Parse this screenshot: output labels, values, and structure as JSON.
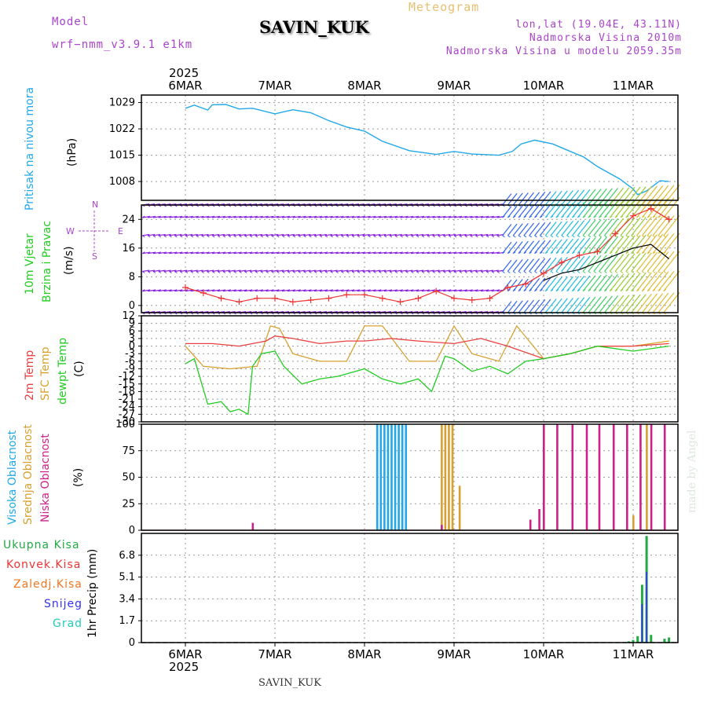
{
  "header": {
    "model_label": "Model",
    "model_name": "wrf−nmm_v3.9.1  e1km",
    "product": "Meteogram",
    "station": "SAVIN_KUK",
    "lonlat": "lon,lat (19.04E, 43.11N)",
    "altitude": "Nadmorska Visina 2010m",
    "model_altitude": "Nadmorska Visina u modelu 2059.35m"
  },
  "footer": {
    "station": "SAVIN_KUK",
    "credit": "made by Angel"
  },
  "colors": {
    "pressure": "#22a8e8",
    "wind_axis": "#00bb00",
    "temp2m": "#e84040",
    "sfc": "#d8a030",
    "dewpt": "#22cc22",
    "high_cloud": "#22a8e8",
    "mid_cloud": "#d8a030",
    "low_cloud": "#cc2288",
    "total_precip": "#22aa44",
    "conv_precip": "#ee3333",
    "frz_precip": "#ee7722",
    "snow": "#3333ee",
    "hail": "#22ccbb",
    "compass": "#aa44cc"
  },
  "chart_data": [
    {
      "type": "line",
      "ylabel_1": "Pritisak na nivou mora",
      "ylabel_2": "(hPa)",
      "year": "2025",
      "x_ticks": [
        "6MAR",
        "7MAR",
        "8MAR",
        "9MAR",
        "10MAR",
        "11MAR"
      ],
      "ylim": [
        1003,
        1031
      ],
      "y_ticks": [
        1008,
        1015,
        1022,
        1029
      ],
      "grid": true,
      "series": [
        {
          "x": [
            0.0,
            0.1,
            0.25,
            0.3,
            0.45,
            0.6,
            0.75,
            1.0,
            1.2,
            1.4,
            1.6,
            1.8,
            2.0,
            2.2,
            2.5,
            2.8,
            3.0,
            3.2,
            3.5,
            3.65,
            3.75,
            3.9,
            4.1,
            4.3,
            4.45,
            4.6,
            4.75,
            4.85,
            5.0,
            5.05,
            5.15,
            5.3,
            5.4
          ],
          "y": [
            1027.5,
            1028.3,
            1027.0,
            1028.4,
            1028.5,
            1027.3,
            1027.5,
            1026.0,
            1027.1,
            1026.3,
            1024.2,
            1022.5,
            1021.4,
            1018.7,
            1016.2,
            1015.2,
            1016.0,
            1015.3,
            1015.0,
            1016.0,
            1018.0,
            1019.0,
            1018.0,
            1016.0,
            1014.5,
            1012.0,
            1010.0,
            1008.7,
            1006.0,
            1004.5,
            1005.5,
            1008.2,
            1008.0
          ]
        }
      ]
    },
    {
      "type": "line",
      "ylabel_1": "10m Vjetar",
      "ylabel_2": "Brzina i Pravac",
      "ylabel_3": "(m/s)",
      "compass": {
        "n": "N",
        "w": "W",
        "s": "S",
        "e": "E"
      },
      "ylim": [
        -2,
        28
      ],
      "y_ticks": [
        0,
        8,
        16,
        24
      ],
      "grid": true,
      "series": [
        {
          "name_color": "red-cross",
          "x": [
            0.0,
            0.2,
            0.4,
            0.6,
            0.8,
            1.0,
            1.2,
            1.4,
            1.6,
            1.8,
            2.0,
            2.2,
            2.4,
            2.6,
            2.8,
            3.0,
            3.2,
            3.4,
            3.6,
            3.8,
            4.0,
            4.2,
            4.4,
            4.6,
            4.8,
            5.0,
            5.2,
            5.4
          ],
          "y": [
            5.0,
            3.5,
            2.0,
            1.0,
            2.0,
            2.0,
            1.0,
            1.5,
            2.0,
            3.0,
            3.0,
            2.0,
            1.0,
            2.0,
            4.0,
            2.0,
            1.5,
            2.0,
            5.0,
            6.0,
            9.0,
            12.0,
            14.0,
            15.0,
            20.0,
            25.0,
            27.0,
            24.0
          ]
        },
        {
          "name_color": "black",
          "x": [
            4.0,
            4.2,
            4.4,
            4.6,
            4.8,
            5.0,
            5.2,
            5.4
          ],
          "y": [
            7.0,
            9.0,
            10.0,
            12.0,
            14.0,
            16.0,
            17.0,
            13.0
          ]
        }
      ]
    },
    {
      "type": "line",
      "ylabel_1": "2m Temp",
      "ylabel_2": "SFC Temp",
      "ylabel_3": "dewpt Temp",
      "ylabel_4": "(C)",
      "ylim": [
        -30,
        12
      ],
      "y_ticks": [
        12,
        9,
        6,
        3,
        0,
        -3,
        -6,
        -9,
        -12,
        -15,
        -18,
        -21,
        -24,
        -27,
        -30
      ],
      "grid": true,
      "series": [
        {
          "x": [
            0.0,
            0.3,
            0.6,
            0.9,
            1.0,
            1.2,
            1.5,
            1.8,
            2.0,
            2.3,
            2.6,
            3.0,
            3.3,
            3.6,
            4.0,
            4.3,
            4.6,
            5.0,
            5.4
          ],
          "y": [
            1.0,
            1.0,
            0.0,
            2.0,
            4.0,
            3.0,
            1.0,
            2.0,
            2.0,
            3.0,
            2.0,
            1.0,
            3.0,
            0.0,
            -5.0,
            -3.0,
            0.0,
            0.0,
            1.0
          ]
        },
        {
          "x": [
            0.0,
            0.2,
            0.5,
            0.8,
            0.95,
            1.05,
            1.2,
            1.5,
            1.8,
            2.0,
            2.2,
            2.5,
            2.8,
            3.0,
            3.2,
            3.5,
            3.7,
            4.0,
            4.3,
            4.6,
            5.0,
            5.4
          ],
          "y": [
            0.0,
            -8.0,
            -9.0,
            -8.0,
            8.0,
            7.0,
            -3.0,
            -6.0,
            -6.0,
            8.0,
            8.0,
            -6.0,
            -6.0,
            8.0,
            -3.0,
            -6.0,
            8.0,
            -5.0,
            -3.0,
            0.0,
            0.0,
            2.0
          ]
        },
        {
          "x": [
            0.0,
            0.1,
            0.25,
            0.4,
            0.5,
            0.6,
            0.7,
            0.75,
            0.85,
            1.0,
            1.1,
            1.3,
            1.5,
            1.7,
            1.9,
            2.0,
            2.2,
            2.4,
            2.6,
            2.75,
            2.9,
            3.0,
            3.2,
            3.4,
            3.6,
            3.8,
            4.0,
            4.3,
            4.6,
            5.0,
            5.4
          ],
          "y": [
            -7.0,
            -5.0,
            -23.0,
            -22.0,
            -26.0,
            -25.0,
            -27.0,
            -8.0,
            -3.0,
            -2.0,
            -8.0,
            -15.0,
            -13.0,
            -12.0,
            -10.0,
            -9.0,
            -13.0,
            -15.0,
            -13.0,
            -18.0,
            -4.0,
            -5.0,
            -10.0,
            -8.0,
            -11.0,
            -6.0,
            -5.0,
            -3.0,
            0.0,
            -2.0,
            0.0
          ]
        }
      ]
    },
    {
      "type": "bar",
      "ylabel_1": "Visoka Oblacnost",
      "ylabel_2": "Srednja Oblacnost",
      "ylabel_3": "Niska Oblacnost",
      "ylabel_4": "(%)",
      "ylim": [
        0,
        100
      ],
      "y_ticks": [
        0,
        25,
        50,
        75,
        100
      ],
      "grid": true,
      "series": [
        {
          "x": [
            2.14,
            2.18,
            2.22,
            2.26,
            2.3,
            2.34,
            2.38,
            2.42,
            2.46
          ],
          "y": [
            100,
            100,
            100,
            100,
            100,
            100,
            100,
            100,
            100
          ]
        },
        {
          "x": [
            2.86,
            2.9,
            2.94,
            2.98,
            3.06,
            5.0,
            5.15
          ],
          "y": [
            100,
            100,
            100,
            100,
            42,
            14,
            100
          ]
        },
        {
          "x": [
            0.75,
            2.86,
            3.85,
            3.95,
            4.0,
            4.15,
            4.32,
            4.48,
            4.62,
            4.78,
            4.93,
            5.08,
            5.2,
            5.35
          ],
          "y": [
            7,
            5,
            10,
            20,
            100,
            100,
            100,
            100,
            100,
            100,
            100,
            100,
            100,
            100
          ]
        }
      ]
    },
    {
      "type": "bar",
      "labels": [
        "Ukupna Kisa",
        "Konvek.Kisa",
        "Zaledj.Kisa",
        "Snijeg",
        "Grad"
      ],
      "ylabel": "1hr Precip (mm)",
      "ylim": [
        0,
        8.5
      ],
      "y_ticks": [
        0,
        1.7,
        3.4,
        5.1,
        6.8
      ],
      "grid": true,
      "series": [
        {
          "x": [
            4.95,
            5.0,
            5.05,
            5.1,
            5.15,
            5.2,
            5.35,
            5.4
          ],
          "y": [
            0.1,
            0.2,
            0.5,
            4.5,
            8.3,
            0.6,
            0.3,
            0.4
          ]
        },
        {
          "x": [
            5.1,
            5.15
          ],
          "y": [
            3.0,
            5.5
          ]
        }
      ]
    }
  ]
}
